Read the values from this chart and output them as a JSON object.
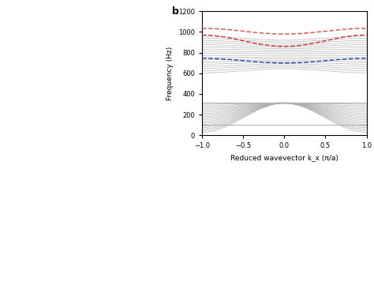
{
  "panel_label": "b",
  "xlabel": "Reduced wavevector k_x (π/a)",
  "ylabel": "Frequency (Hz)",
  "xlim": [
    -1.0,
    1.0
  ],
  "ylim": [
    0,
    1200
  ],
  "yticks": [
    0,
    200,
    400,
    600,
    800,
    1000,
    1200
  ],
  "xticks": [
    -1.0,
    -0.5,
    0.0,
    0.5,
    1.0
  ],
  "band_color": "#b0b0b0",
  "band_alpha": 0.85,
  "band_lw": 0.55,
  "interface_blue_color": "#2244bb",
  "interface_red_color": "#cc3333",
  "interface_lw": 1.1,
  "n_k": 300,
  "lower_bands": [
    {
      "f0": 315,
      "f_k1": 315,
      "shape": "flat"
    },
    {
      "f0": 100,
      "f_k1": 100,
      "shape": "flat"
    },
    {
      "f0": 310,
      "f_k1": 15,
      "shape": "cosdown",
      "n": 20
    }
  ],
  "upper_n": 18,
  "upper_f_at_k1_min": 645,
  "upper_f_at_k1_max": 920,
  "upper_f_at_k0_min": 645,
  "upper_f_at_k0_max": 920,
  "upper_bulge_min": 645,
  "upper_bulge_max": 920,
  "blue_mode_f0": 700,
  "blue_mode_amp": 45,
  "red_mode_f0": 860,
  "red_mode_amp": 110,
  "red2_mode_f0": 980,
  "red2_mode_amp": 55
}
